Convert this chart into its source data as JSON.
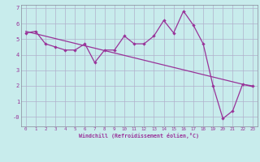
{
  "xlabel": "Windchill (Refroidissement éolien,°C)",
  "bg_color": "#c8ecec",
  "grid_color": "#b0b0cc",
  "line_color": "#993399",
  "xlim": [
    -0.5,
    23.5
  ],
  "ylim": [
    -0.6,
    7.2
  ],
  "xticks": [
    0,
    1,
    2,
    3,
    4,
    5,
    6,
    7,
    8,
    9,
    10,
    11,
    12,
    13,
    14,
    15,
    16,
    17,
    18,
    19,
    20,
    21,
    22,
    23
  ],
  "yticks": [
    0,
    1,
    2,
    3,
    4,
    5,
    6,
    7
  ],
  "ytick_labels": [
    "-0",
    "1",
    "2",
    "3",
    "4",
    "5",
    "6",
    "7"
  ],
  "data_x": [
    0,
    1,
    2,
    3,
    4,
    5,
    6,
    7,
    8,
    9,
    10,
    11,
    12,
    13,
    14,
    15,
    16,
    17,
    18,
    19,
    20,
    21,
    22,
    23
  ],
  "data_y": [
    5.4,
    5.5,
    4.7,
    4.5,
    4.3,
    4.3,
    4.7,
    3.5,
    4.3,
    4.3,
    5.2,
    4.7,
    4.7,
    5.2,
    6.2,
    5.4,
    6.8,
    5.9,
    4.7,
    2.0,
    -0.1,
    0.4,
    2.1,
    2.0
  ],
  "trend_x": [
    0,
    23
  ],
  "trend_y": [
    5.5,
    1.95
  ]
}
